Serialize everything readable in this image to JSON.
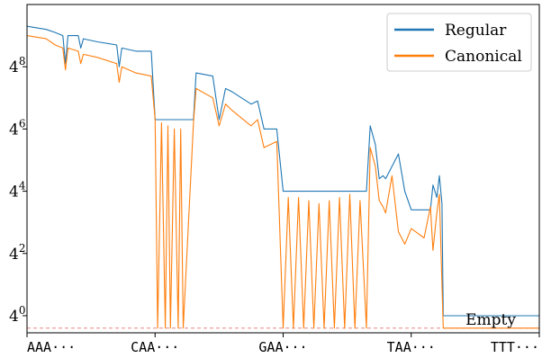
{
  "chart_data": {
    "type": "line",
    "title": "",
    "xlabel": "",
    "ylabel": "",
    "y_scale": "log4",
    "ylim_log4": [
      -0.55,
      10.0
    ],
    "xlim": [
      0,
      4
    ],
    "grid": false,
    "legend_position": "top-right",
    "x_ticks": [
      {
        "pos": 0,
        "label": "AAA···"
      },
      {
        "pos": 1,
        "label": "CAA···"
      },
      {
        "pos": 2,
        "label": "GAA···"
      },
      {
        "pos": 3,
        "label": "TAA···"
      },
      {
        "pos": 4,
        "label": "TTT···"
      }
    ],
    "y_ticks": [
      {
        "pow": 0,
        "base": "4",
        "exp": "0"
      },
      {
        "pow": 2,
        "base": "4",
        "exp": "2"
      },
      {
        "pow": 4,
        "base": "4",
        "exp": "4"
      },
      {
        "pow": 6,
        "base": "4",
        "exp": "6"
      },
      {
        "pow": 8,
        "base": "4",
        "exp": "8"
      }
    ],
    "reference_line": {
      "log4": -0.4,
      "label": "Empty",
      "color": "#e77771"
    },
    "series": [
      {
        "name": "Regular",
        "color": "#1f77b4",
        "points": [
          [
            0.0,
            9.3
          ],
          [
            0.15,
            9.2
          ],
          [
            0.22,
            9.1
          ],
          [
            0.28,
            9.0
          ],
          [
            0.3,
            8.1
          ],
          [
            0.32,
            9.0
          ],
          [
            0.4,
            9.0
          ],
          [
            0.42,
            8.6
          ],
          [
            0.44,
            8.9
          ],
          [
            0.55,
            8.8
          ],
          [
            0.7,
            8.7
          ],
          [
            0.72,
            8.0
          ],
          [
            0.74,
            8.6
          ],
          [
            0.85,
            8.5
          ],
          [
            0.97,
            8.5
          ],
          [
            1.0,
            6.3
          ],
          [
            1.3,
            6.3
          ],
          [
            1.32,
            7.8
          ],
          [
            1.45,
            7.7
          ],
          [
            1.5,
            6.3
          ],
          [
            1.55,
            7.3
          ],
          [
            1.6,
            7.2
          ],
          [
            1.75,
            6.8
          ],
          [
            1.8,
            6.9
          ],
          [
            1.85,
            6.0
          ],
          [
            1.95,
            6.0
          ],
          [
            2.0,
            4.0
          ],
          [
            2.65,
            4.0
          ],
          [
            2.68,
            6.1
          ],
          [
            2.72,
            5.5
          ],
          [
            2.75,
            4.4
          ],
          [
            2.78,
            4.5
          ],
          [
            2.8,
            4.4
          ],
          [
            2.9,
            5.2
          ],
          [
            2.95,
            4.0
          ],
          [
            3.0,
            3.4
          ],
          [
            3.15,
            3.4
          ],
          [
            3.17,
            4.2
          ],
          [
            3.2,
            3.8
          ],
          [
            3.22,
            4.5
          ],
          [
            3.24,
            3.6
          ],
          [
            3.25,
            0.0
          ],
          [
            4.0,
            0.0
          ]
        ]
      },
      {
        "name": "Canonical",
        "color": "#ff7f0e",
        "points": [
          [
            0.0,
            9.0
          ],
          [
            0.15,
            8.9
          ],
          [
            0.22,
            8.7
          ],
          [
            0.28,
            8.6
          ],
          [
            0.3,
            7.9
          ],
          [
            0.32,
            8.6
          ],
          [
            0.4,
            8.5
          ],
          [
            0.42,
            8.1
          ],
          [
            0.44,
            8.4
          ],
          [
            0.55,
            8.3
          ],
          [
            0.7,
            8.1
          ],
          [
            0.72,
            7.5
          ],
          [
            0.74,
            8.0
          ],
          [
            0.85,
            7.8
          ],
          [
            0.97,
            7.7
          ],
          [
            1.0,
            6.3
          ],
          [
            1.02,
            -0.4
          ],
          [
            1.05,
            6.2
          ],
          [
            1.08,
            -0.4
          ],
          [
            1.1,
            6.1
          ],
          [
            1.12,
            -0.4
          ],
          [
            1.15,
            6.0
          ],
          [
            1.18,
            -0.4
          ],
          [
            1.2,
            6.0
          ],
          [
            1.22,
            -0.4
          ],
          [
            1.3,
            6.2
          ],
          [
            1.32,
            7.3
          ],
          [
            1.45,
            7.0
          ],
          [
            1.5,
            6.1
          ],
          [
            1.55,
            6.8
          ],
          [
            1.6,
            6.6
          ],
          [
            1.75,
            6.1
          ],
          [
            1.8,
            6.3
          ],
          [
            1.85,
            5.4
          ],
          [
            1.95,
            5.6
          ],
          [
            2.0,
            -0.4
          ],
          [
            2.04,
            3.8
          ],
          [
            2.08,
            -0.4
          ],
          [
            2.12,
            3.8
          ],
          [
            2.16,
            -0.4
          ],
          [
            2.2,
            3.7
          ],
          [
            2.24,
            -0.4
          ],
          [
            2.28,
            3.6
          ],
          [
            2.32,
            -0.4
          ],
          [
            2.36,
            3.7
          ],
          [
            2.4,
            -0.4
          ],
          [
            2.44,
            3.8
          ],
          [
            2.48,
            -0.4
          ],
          [
            2.52,
            3.9
          ],
          [
            2.56,
            -0.4
          ],
          [
            2.6,
            3.7
          ],
          [
            2.65,
            -0.4
          ],
          [
            2.68,
            5.4
          ],
          [
            2.72,
            4.8
          ],
          [
            2.75,
            3.7
          ],
          [
            2.78,
            3.5
          ],
          [
            2.8,
            3.3
          ],
          [
            2.85,
            4.5
          ],
          [
            2.9,
            2.7
          ],
          [
            2.95,
            2.3
          ],
          [
            3.0,
            2.8
          ],
          [
            3.1,
            2.5
          ],
          [
            3.15,
            3.5
          ],
          [
            3.17,
            2.1
          ],
          [
            3.2,
            3.3
          ],
          [
            3.22,
            3.9
          ],
          [
            3.25,
            -0.4
          ],
          [
            4.0,
            -0.4
          ]
        ]
      }
    ]
  }
}
